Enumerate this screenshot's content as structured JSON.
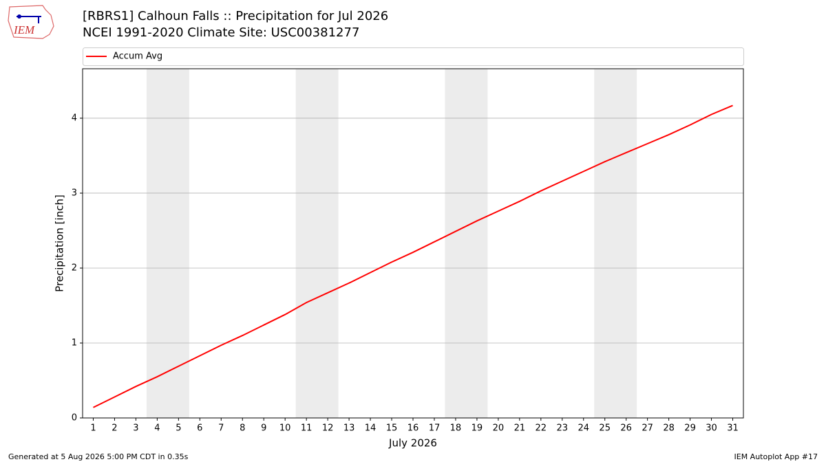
{
  "logo": "IEM",
  "footer": {
    "left": "Generated at 5 Aug 2026 5:00 PM CDT in 0.35s",
    "right": "IEM Autoplot App #17"
  },
  "chart_data": {
    "type": "line",
    "title": "[RBRS1] Calhoun Falls :: Precipitation for Jul 2026",
    "subtitle": "NCEI 1991-2020 Climate Site: USC00381277",
    "xlabel": "July 2026",
    "ylabel": "Precipitation [inch]",
    "x": [
      1,
      2,
      3,
      4,
      5,
      6,
      7,
      8,
      9,
      10,
      11,
      12,
      13,
      14,
      15,
      16,
      17,
      18,
      19,
      20,
      21,
      22,
      23,
      24,
      25,
      26,
      27,
      28,
      29,
      30,
      31
    ],
    "series": [
      {
        "name": "Accum Avg",
        "color": "#ff0000",
        "values": [
          0.14,
          0.28,
          0.42,
          0.55,
          0.69,
          0.83,
          0.97,
          1.1,
          1.24,
          1.38,
          1.54,
          1.67,
          1.8,
          1.94,
          2.08,
          2.21,
          2.35,
          2.49,
          2.63,
          2.76,
          2.89,
          3.03,
          3.16,
          3.29,
          3.42,
          3.54,
          3.66,
          3.78,
          3.91,
          4.05,
          4.17
        ]
      }
    ],
    "shaded_spans": [
      [
        3.5,
        5.5
      ],
      [
        10.5,
        12.5
      ],
      [
        17.5,
        19.5
      ],
      [
        24.5,
        26.5
      ]
    ],
    "shade_color": "#ececec",
    "xlim": [
      0.5,
      31.5
    ],
    "ylim": [
      0,
      4.66
    ],
    "xticks": [
      1,
      2,
      3,
      4,
      5,
      6,
      7,
      8,
      9,
      10,
      11,
      12,
      13,
      14,
      15,
      16,
      17,
      18,
      19,
      20,
      21,
      22,
      23,
      24,
      25,
      26,
      27,
      28,
      29,
      30,
      31
    ],
    "yticks": [
      0,
      1,
      2,
      3,
      4
    ],
    "grid": true,
    "legend": "top"
  }
}
